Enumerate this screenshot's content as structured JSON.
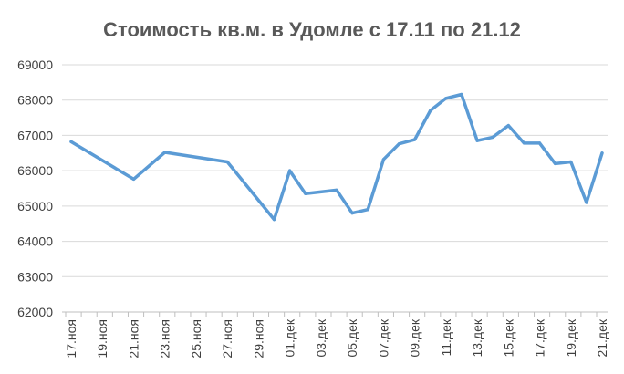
{
  "chart_data": {
    "type": "line",
    "title": "Стоимость кв.м. в Удомле с 17.11 по 21.12",
    "xlabel": "",
    "ylabel": "",
    "ylim": [
      62000,
      69000
    ],
    "yticks": [
      "62000",
      "63000",
      "64000",
      "65000",
      "66000",
      "67000",
      "68000",
      "69000"
    ],
    "grid": true,
    "legend": "none",
    "xticks": [
      "17.ноя",
      "19.ноя",
      "21.ноя",
      "23.ноя",
      "25.ноя",
      "27.ноя",
      "29.ноя",
      "01.дек",
      "03.дек",
      "05.дек",
      "07.дек",
      "09.дек",
      "11.дек",
      "13.дек",
      "15.дек",
      "17.дек",
      "19.дек",
      "21.дек"
    ],
    "line_color": "#5b9bd5",
    "series": [
      {
        "points": [
          [
            "17.ноя",
            66820
          ],
          [
            "21.ноя",
            65760
          ],
          [
            "23.ноя",
            66520
          ],
          [
            "27.ноя",
            66250
          ],
          [
            "30.ноя",
            64620
          ],
          [
            "01.дек",
            66000
          ],
          [
            "02.дек",
            65350
          ],
          [
            "04.дек",
            65450
          ],
          [
            "05.дек",
            64800
          ],
          [
            "06.дек",
            64900
          ],
          [
            "07.дек",
            66320
          ],
          [
            "08.дек",
            66760
          ],
          [
            "09.дек",
            66880
          ],
          [
            "10.дек",
            67700
          ],
          [
            "11.дек",
            68050
          ],
          [
            "12.дек",
            68160
          ],
          [
            "13.дек",
            66850
          ],
          [
            "14.дек",
            66950
          ],
          [
            "15.дек",
            67280
          ],
          [
            "16.дек",
            66780
          ],
          [
            "17.дек",
            66780
          ],
          [
            "18.дек",
            66200
          ],
          [
            "19.дек",
            66250
          ],
          [
            "20.дек",
            65100
          ],
          [
            "21.дек",
            66500
          ]
        ]
      }
    ]
  }
}
